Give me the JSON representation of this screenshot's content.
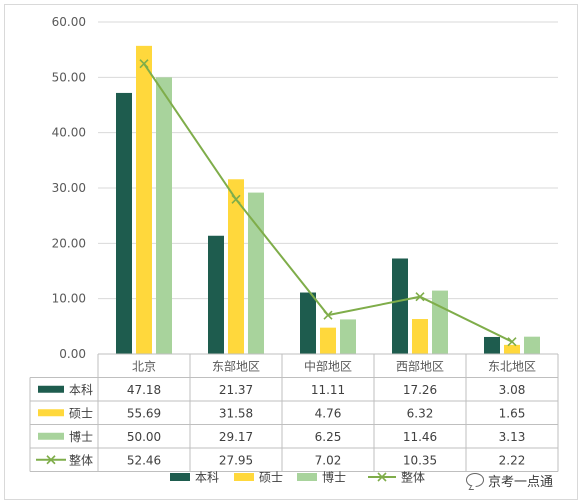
{
  "chart_data": {
    "type": "bar",
    "categories": [
      "北京",
      "东部地区",
      "中部地区",
      "西部地区",
      "东北地区"
    ],
    "series": [
      {
        "name": "本科",
        "kind": "bar",
        "color": "#1e5c4e",
        "values": [
          47.18,
          21.37,
          11.11,
          17.26,
          3.08
        ],
        "labels": [
          "47.18",
          "21.37",
          "11.11",
          "17.26",
          "3.08"
        ]
      },
      {
        "name": "硕士",
        "kind": "bar",
        "color": "#ffd83c",
        "values": [
          55.69,
          31.58,
          4.76,
          6.32,
          1.65
        ],
        "labels": [
          "55.69",
          "31.58",
          "4.76",
          "6.32",
          "1.65"
        ]
      },
      {
        "name": "博士",
        "kind": "bar",
        "color": "#a8d39c",
        "values": [
          50.0,
          29.17,
          6.25,
          11.46,
          3.13
        ],
        "labels": [
          "50.00",
          "29.17",
          "6.25",
          "11.46",
          "3.13"
        ]
      },
      {
        "name": "整体",
        "kind": "line",
        "marker": "x",
        "color": "#7fad4a",
        "values": [
          52.46,
          27.95,
          7.02,
          10.35,
          2.22
        ],
        "labels": [
          "52.46",
          "27.95",
          "7.02",
          "10.35",
          "2.22"
        ]
      }
    ],
    "y_ticks": [
      "0.00",
      "10.00",
      "20.00",
      "30.00",
      "40.00",
      "50.00",
      "60.00"
    ],
    "ylim": [
      0,
      60
    ],
    "grid": true,
    "data_table": true,
    "legend": "bottom"
  },
  "watermark": {
    "text": "京考一点通",
    "icon": "chat-bubble-icon"
  }
}
